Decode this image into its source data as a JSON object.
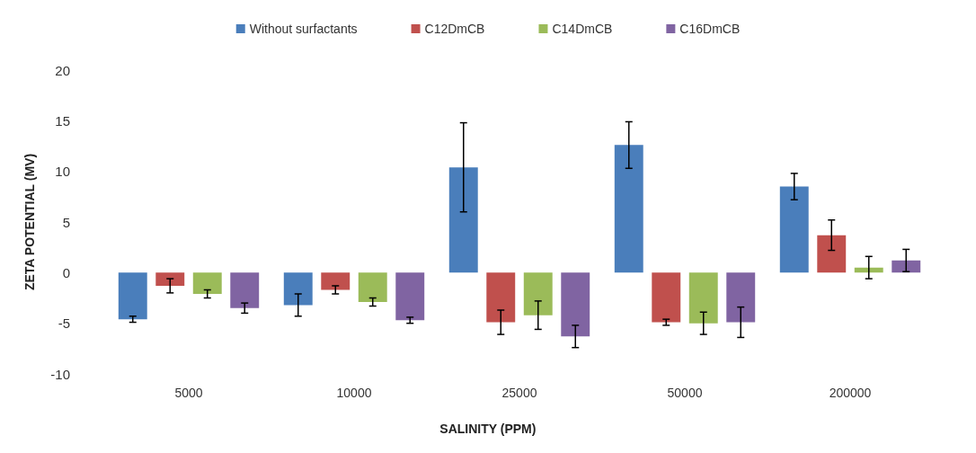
{
  "chart_data": {
    "type": "bar",
    "xlabel": "SALINITY (PPM)",
    "ylabel": "ZETA POTENTIAL (MV)",
    "categories": [
      "5000",
      "10000",
      "25000",
      "50000",
      "200000"
    ],
    "series": [
      {
        "name": "Without surfactants",
        "color": "#4a7ebb",
        "values": [
          -4.6,
          -3.2,
          10.4,
          12.6,
          8.5
        ],
        "errors": [
          0.3,
          1.1,
          4.4,
          2.3,
          1.3
        ]
      },
      {
        "name": "C12DmCB",
        "color": "#c0504d",
        "values": [
          -1.3,
          -1.7,
          -4.9,
          -4.9,
          3.7
        ],
        "errors": [
          0.7,
          0.4,
          1.2,
          0.3,
          1.5
        ]
      },
      {
        "name": "C14DmCB",
        "color": "#9bbb59",
        "values": [
          -2.1,
          -2.9,
          -4.2,
          -5.0,
          0.5
        ],
        "errors": [
          0.4,
          0.4,
          1.4,
          1.1,
          1.1
        ]
      },
      {
        "name": "C16DmCB",
        "color": "#8064a2",
        "values": [
          -3.5,
          -4.7,
          -6.3,
          -4.9,
          1.2
        ],
        "errors": [
          0.5,
          0.3,
          1.1,
          1.5,
          1.1
        ]
      }
    ],
    "ylim": [
      -10,
      20
    ],
    "yticks": [
      -10,
      -5,
      0,
      5,
      10,
      15,
      20
    ],
    "grid": false,
    "legend": "top"
  }
}
